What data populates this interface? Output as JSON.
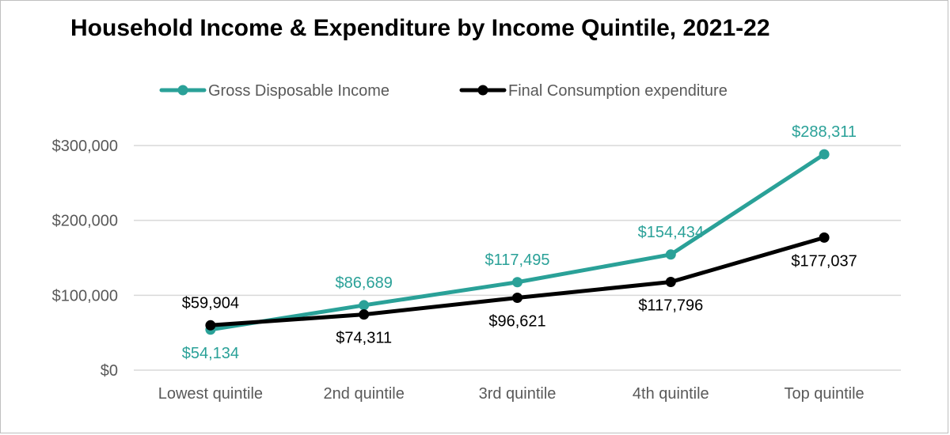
{
  "chart_data": {
    "type": "line",
    "title": "Household Income & Expenditure by Income Quintile, 2021-22",
    "categories": [
      "Lowest quintile",
      "2nd quintile",
      "3rd quintile",
      "4th quintile",
      "Top quintile"
    ],
    "series": [
      {
        "name": "Gross Disposable Income",
        "color": "#2aa198",
        "values": [
          54134,
          86689,
          117495,
          154434,
          288311
        ],
        "labels": [
          "$54,134",
          "$86,689",
          "$117,495",
          "$154,434",
          "$288,311"
        ],
        "label_positions": [
          "below",
          "above",
          "above",
          "above",
          "above"
        ]
      },
      {
        "name": "Final Consumption expenditure",
        "color": "#000000",
        "values": [
          59904,
          74311,
          96621,
          117796,
          177037
        ],
        "labels": [
          "$59,904",
          "$74,311",
          "$96,621",
          "$117,796",
          "$177,037"
        ],
        "label_positions": [
          "above",
          "below",
          "below",
          "below",
          "below"
        ]
      }
    ],
    "y_ticks": [
      0,
      100000,
      200000,
      300000
    ],
    "y_tick_labels": [
      "$0",
      "$100,000",
      "$200,000",
      "$300,000"
    ],
    "ylim": [
      0,
      300000
    ],
    "xlabel": "",
    "ylabel": "",
    "grid": true,
    "legend_position": "top-center"
  }
}
